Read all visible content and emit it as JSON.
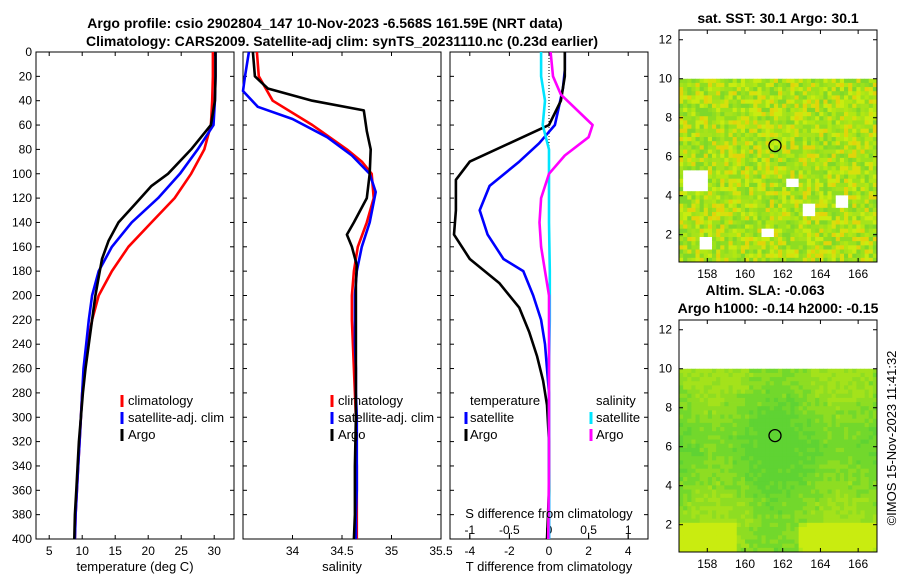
{
  "figure": {
    "title_line1": "Argo profile: csio 2902804_147 10-Nov-2023 -6.568S 161.59E (NRT data)",
    "title_line2": "Climatology: CARS2009. Satellite-adj clim: synTS_20231110.nc (0.23d earlier)",
    "sst_title": "sat. SST: 30.1 Argo: 30.1",
    "sla_title_line1": "Altim. SLA: -0.063",
    "sla_title_line2": "Argo h1000: -0.14 h2000: -0.15",
    "credit": "©IMOS 15-Nov-2023 11:41:32",
    "colors": {
      "climatology": "#ff0000",
      "satellite": "#0000ff",
      "argo": "#000000",
      "sal_satellite": "#00e5ff",
      "sal_argo": "#ff00ff"
    }
  },
  "chart_data": [
    {
      "type": "line",
      "name": "temperature",
      "xlabel": "temperature (deg C)",
      "ylabel": "",
      "xlim": [
        3,
        33
      ],
      "ylim": [
        400,
        0
      ],
      "xticks": [
        5,
        10,
        15,
        20,
        25,
        30
      ],
      "yticks": [
        0,
        20,
        40,
        60,
        80,
        100,
        120,
        140,
        160,
        180,
        200,
        220,
        240,
        260,
        280,
        300,
        320,
        340,
        360,
        380,
        400
      ],
      "legend": [
        "climatology",
        "satellite-adj. clim",
        "Argo"
      ],
      "series": [
        {
          "name": "climatology",
          "color": "#ff0000",
          "points": [
            [
              29.8,
              0
            ],
            [
              29.8,
              20
            ],
            [
              29.7,
              40
            ],
            [
              29.5,
              60
            ],
            [
              28.5,
              80
            ],
            [
              26.5,
              100
            ],
            [
              24,
              120
            ],
            [
              20.5,
              140
            ],
            [
              17,
              160
            ],
            [
              14.5,
              180
            ],
            [
              12.5,
              200
            ],
            [
              11.5,
              220
            ],
            [
              10.8,
              240
            ],
            [
              10.3,
              260
            ],
            [
              10,
              280
            ],
            [
              9.8,
              300
            ],
            [
              9.6,
              320
            ],
            [
              9.4,
              340
            ],
            [
              9.2,
              360
            ],
            [
              9,
              380
            ],
            [
              8.9,
              400
            ]
          ]
        },
        {
          "name": "satellite-adj. clim",
          "color": "#0000ff",
          "points": [
            [
              30.2,
              0
            ],
            [
              30.2,
              20
            ],
            [
              30.1,
              40
            ],
            [
              29.9,
              60
            ],
            [
              27.5,
              80
            ],
            [
              24.8,
              100
            ],
            [
              21.5,
              120
            ],
            [
              17.5,
              140
            ],
            [
              14.5,
              160
            ],
            [
              12.5,
              180
            ],
            [
              11.5,
              200
            ],
            [
              11,
              220
            ],
            [
              10.6,
              240
            ],
            [
              10.2,
              260
            ],
            [
              10,
              280
            ],
            [
              9.8,
              300
            ],
            [
              9.6,
              320
            ],
            [
              9.4,
              340
            ],
            [
              9.2,
              360
            ],
            [
              9,
              380
            ],
            [
              8.9,
              400
            ]
          ]
        },
        {
          "name": "Argo",
          "color": "#000000",
          "points": [
            [
              30.2,
              0
            ],
            [
              30.2,
              20
            ],
            [
              30.1,
              40
            ],
            [
              29.5,
              60
            ],
            [
              26.5,
              80
            ],
            [
              23,
              100
            ],
            [
              20.5,
              110
            ],
            [
              18,
              125
            ],
            [
              15.5,
              140
            ],
            [
              14,
              155
            ],
            [
              13,
              170
            ],
            [
              12.5,
              185
            ],
            [
              12,
              200
            ],
            [
              11.5,
              220
            ],
            [
              11,
              240
            ],
            [
              10.5,
              260
            ],
            [
              10.1,
              280
            ],
            [
              9.8,
              300
            ],
            [
              9.5,
              320
            ],
            [
              9.3,
              340
            ],
            [
              9.1,
              360
            ],
            [
              8.9,
              380
            ],
            [
              8.8,
              400
            ]
          ]
        }
      ]
    },
    {
      "type": "line",
      "name": "salinity",
      "xlabel": "salinity",
      "ylabel": "",
      "xlim": [
        33.5,
        35.5
      ],
      "ylim": [
        400,
        0
      ],
      "xticks": [
        34,
        34.5,
        35,
        35.5
      ],
      "legend": [
        "climatology",
        "satellite-adj. clim",
        "Argo"
      ],
      "series": [
        {
          "name": "climatology",
          "color": "#ff0000",
          "points": [
            [
              33.64,
              0
            ],
            [
              33.66,
              20
            ],
            [
              33.8,
              40
            ],
            [
              34.2,
              60
            ],
            [
              34.55,
              80
            ],
            [
              34.7,
              90
            ],
            [
              34.8,
              100
            ],
            [
              34.82,
              120
            ],
            [
              34.75,
              140
            ],
            [
              34.66,
              160
            ],
            [
              34.62,
              180
            ],
            [
              34.6,
              200
            ],
            [
              34.6,
              220
            ],
            [
              34.61,
              240
            ],
            [
              34.62,
              260
            ],
            [
              34.63,
              280
            ],
            [
              34.64,
              300
            ],
            [
              34.64,
              320
            ],
            [
              34.65,
              340
            ],
            [
              34.65,
              360
            ],
            [
              34.65,
              380
            ],
            [
              34.65,
              400
            ]
          ]
        },
        {
          "name": "satellite-adj. clim",
          "color": "#0000ff",
          "points": [
            [
              33.56,
              0
            ],
            [
              33.52,
              20
            ],
            [
              33.5,
              32
            ],
            [
              33.65,
              45
            ],
            [
              34,
              55
            ],
            [
              34.35,
              70
            ],
            [
              34.6,
              85
            ],
            [
              34.78,
              100
            ],
            [
              34.84,
              115
            ],
            [
              34.78,
              140
            ],
            [
              34.7,
              160
            ],
            [
              34.65,
              180
            ],
            [
              34.63,
              200
            ],
            [
              34.63,
              220
            ],
            [
              34.63,
              240
            ],
            [
              34.64,
              260
            ],
            [
              34.64,
              280
            ],
            [
              34.65,
              300
            ],
            [
              34.65,
              320
            ],
            [
              34.65,
              340
            ],
            [
              34.65,
              360
            ],
            [
              34.64,
              380
            ],
            [
              34.64,
              400
            ]
          ]
        },
        {
          "name": "Argo",
          "color": "#000000",
          "points": [
            [
              33.6,
              0
            ],
            [
              33.62,
              20
            ],
            [
              33.75,
              30
            ],
            [
              34.2,
              40
            ],
            [
              34.72,
              48
            ],
            [
              34.75,
              65
            ],
            [
              34.79,
              80
            ],
            [
              34.78,
              100
            ],
            [
              34.75,
              120
            ],
            [
              34.62,
              140
            ],
            [
              34.55,
              150
            ],
            [
              34.6,
              160
            ],
            [
              34.65,
              175
            ],
            [
              34.64,
              190
            ],
            [
              34.64,
              220
            ],
            [
              34.64,
              260
            ],
            [
              34.64,
              300
            ],
            [
              34.63,
              340
            ],
            [
              34.63,
              380
            ],
            [
              34.62,
              400
            ]
          ]
        }
      ]
    },
    {
      "type": "line",
      "name": "difference",
      "xlabel": "T difference from climatology",
      "x2label": "S difference from climatology",
      "xlim": [
        -5,
        5
      ],
      "x2lim": [
        -1.25,
        1.25
      ],
      "ylim": [
        400,
        0
      ],
      "xticks": [
        -4,
        -2,
        0,
        2,
        4
      ],
      "x2ticks": [
        -1,
        -0.5,
        0,
        0.5,
        1
      ],
      "legend_left_title": "temperature",
      "legend_right_title": "salinity",
      "legend": {
        "left": [
          "satellite",
          "Argo"
        ],
        "right": [
          "satellite",
          "Argo"
        ]
      },
      "series": [
        {
          "name": "T satellite",
          "color": "#0000ff",
          "axis": "T",
          "points": [
            [
              0.8,
              0
            ],
            [
              0.8,
              15
            ],
            [
              0.7,
              30
            ],
            [
              0.5,
              45
            ],
            [
              0.3,
              60
            ],
            [
              -0.5,
              75
            ],
            [
              -1.5,
              90
            ],
            [
              -3,
              110
            ],
            [
              -3.5,
              130
            ],
            [
              -3.1,
              150
            ],
            [
              -2.3,
              170
            ],
            [
              -1.3,
              180
            ],
            [
              -0.8,
              200
            ],
            [
              -0.4,
              220
            ],
            [
              -0.2,
              240
            ],
            [
              -0.1,
              260
            ],
            [
              0,
              280
            ],
            [
              0,
              320
            ],
            [
              0,
              360
            ],
            [
              0,
              400
            ]
          ]
        },
        {
          "name": "T Argo",
          "color": "#000000",
          "axis": "T",
          "points": [
            [
              0.8,
              0
            ],
            [
              0.8,
              20
            ],
            [
              0.6,
              40
            ],
            [
              0,
              60
            ],
            [
              -2,
              75
            ],
            [
              -4,
              90
            ],
            [
              -4.7,
              105
            ],
            [
              -4.7,
              130
            ],
            [
              -4.8,
              150
            ],
            [
              -4,
              170
            ],
            [
              -2.5,
              190
            ],
            [
              -1.5,
              210
            ],
            [
              -1,
              230
            ],
            [
              -0.6,
              250
            ],
            [
              -0.3,
              270
            ],
            [
              -0.1,
              290
            ],
            [
              0,
              320
            ],
            [
              0,
              360
            ],
            [
              -0.1,
              400
            ]
          ]
        },
        {
          "name": "S satellite",
          "color": "#00e5ff",
          "axis": "S",
          "points": [
            [
              -0.1,
              0
            ],
            [
              -0.1,
              20
            ],
            [
              -0.05,
              40
            ],
            [
              -0.08,
              60
            ],
            [
              0,
              80
            ],
            [
              0,
              100
            ],
            [
              0,
              140
            ],
            [
              0.01,
              180
            ],
            [
              0.01,
              220
            ],
            [
              0,
              260
            ],
            [
              0,
              300
            ],
            [
              0,
              340
            ],
            [
              0,
              380
            ],
            [
              0,
              400
            ]
          ]
        },
        {
          "name": "S Argo",
          "color": "#ff00ff",
          "axis": "S",
          "points": [
            [
              0.02,
              0
            ],
            [
              0.05,
              20
            ],
            [
              0.15,
              35
            ],
            [
              0.55,
              60
            ],
            [
              0.5,
              70
            ],
            [
              0.2,
              85
            ],
            [
              0,
              100
            ],
            [
              -0.1,
              120
            ],
            [
              -0.12,
              140
            ],
            [
              -0.1,
              160
            ],
            [
              -0.05,
              180
            ],
            [
              0,
              200
            ],
            [
              0,
              240
            ],
            [
              0,
              300
            ],
            [
              0,
              340
            ],
            [
              -0.01,
              400
            ]
          ]
        }
      ]
    },
    {
      "type": "heatmap",
      "name": "sat-sst-map",
      "title": "sat. SST: 30.1 Argo: 30.1",
      "xlim": [
        156.5,
        167
      ],
      "ylim": [
        0.6,
        12.5
      ],
      "xticks": [
        158,
        160,
        162,
        164,
        166
      ],
      "yticks": [
        2,
        4,
        6,
        8,
        10,
        12
      ],
      "argo_location": [
        161.59,
        6.568
      ]
    },
    {
      "type": "heatmap",
      "name": "altim-sla-map",
      "title": "Altim. SLA: -0.063",
      "xlim": [
        156.5,
        167
      ],
      "ylim": [
        0.6,
        12.5
      ],
      "xticks": [
        158,
        160,
        162,
        164,
        166
      ],
      "yticks": [
        2,
        4,
        6,
        8,
        10,
        12
      ],
      "argo_location": [
        161.59,
        6.568
      ]
    }
  ]
}
